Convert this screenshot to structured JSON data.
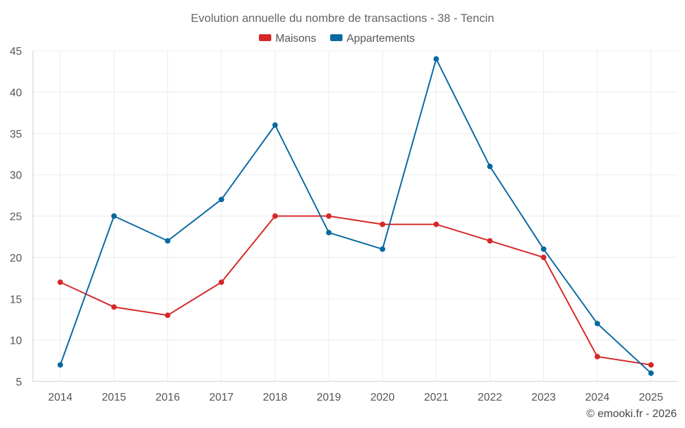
{
  "chart_data": {
    "type": "line",
    "title": "Evolution annuelle du nombre de transactions - 38 - Tencin",
    "categories": [
      "2014",
      "2015",
      "2016",
      "2017",
      "2018",
      "2019",
      "2020",
      "2021",
      "2022",
      "2023",
      "2024",
      "2025"
    ],
    "series": [
      {
        "name": "Maisons",
        "color": "#d62728",
        "values": [
          17,
          14,
          13,
          17,
          25,
          25,
          24,
          24,
          22,
          20,
          8,
          7
        ]
      },
      {
        "name": "Appartements",
        "color": "#0868a0",
        "values": [
          7,
          25,
          22,
          27,
          36,
          23,
          21,
          44,
          31,
          21,
          12,
          6
        ]
      }
    ],
    "ylim": [
      5,
      45
    ],
    "yticks": [
      5,
      10,
      15,
      20,
      25,
      30,
      35,
      40,
      45
    ],
    "xlabel": "",
    "ylabel": "",
    "grid": true,
    "legend_position": "top-center"
  },
  "credit": "© emooki.fr - 2026"
}
